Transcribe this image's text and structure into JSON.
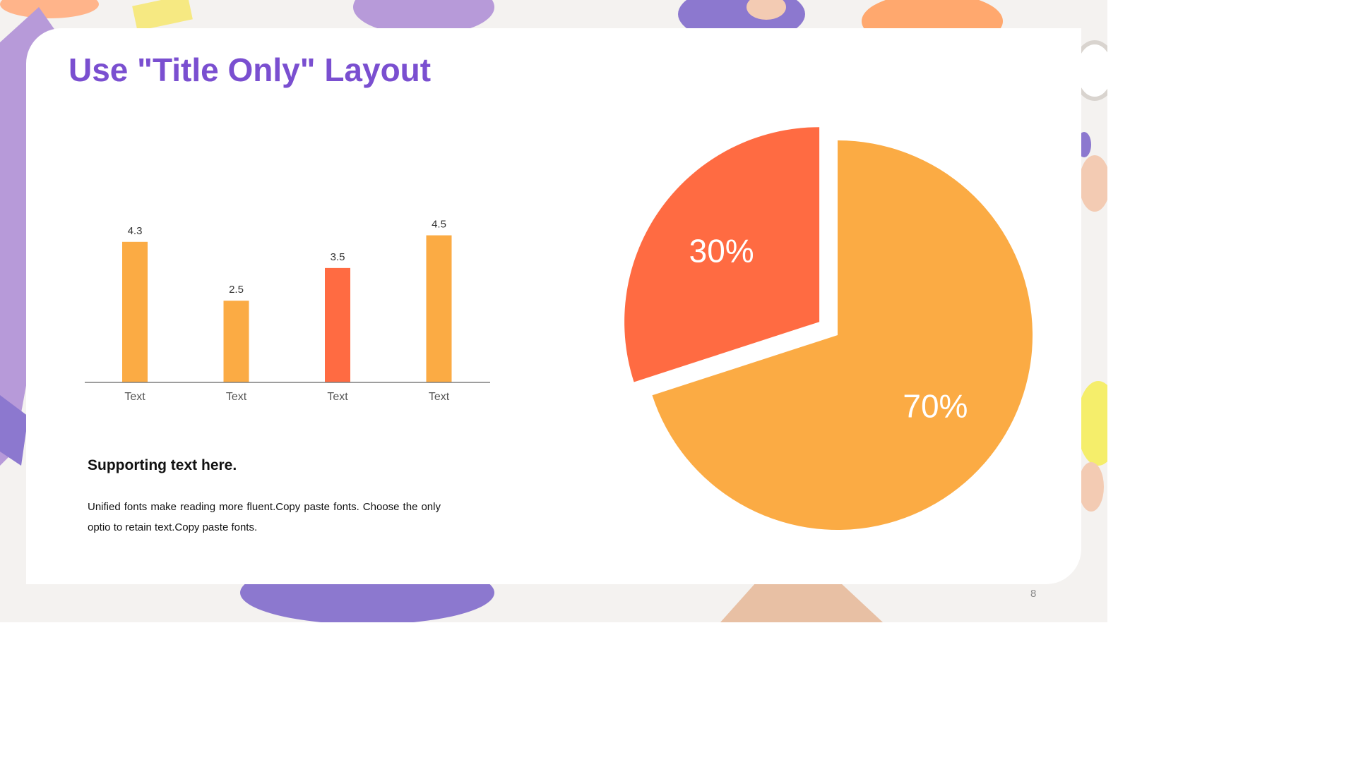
{
  "slide": {
    "title": "Use \"Title Only\" Layout",
    "supporting_heading": "Supporting text here.",
    "body_text": "Unified  fonts make reading more fluent.Copy paste fonts. Choose the only optio to retain text.Copy paste  fonts.",
    "page_number": "8"
  },
  "colors": {
    "title": "#7a4fd0",
    "orange": "#fbab44",
    "red_orange": "#ff6b42",
    "lavender": "#b79ad9",
    "purple": "#8c78cf"
  },
  "chart_data": [
    {
      "type": "bar",
      "categories": [
        "Text",
        "Text",
        "Text",
        "Text"
      ],
      "values": [
        4.3,
        2.5,
        3.5,
        4.5
      ],
      "data_labels": [
        "4.3",
        "2.5",
        "3.5",
        "4.5"
      ],
      "bar_colors": [
        "#fbab44",
        "#fbab44",
        "#ff6b42",
        "#fbab44"
      ],
      "ylim": [
        0,
        4.9
      ],
      "grid": false,
      "legend": "none"
    },
    {
      "type": "pie",
      "labels": [
        "30%",
        "70%"
      ],
      "values": [
        30,
        70
      ],
      "slice_colors": [
        "#ff6b42",
        "#fbab44"
      ],
      "exploded": true
    }
  ]
}
